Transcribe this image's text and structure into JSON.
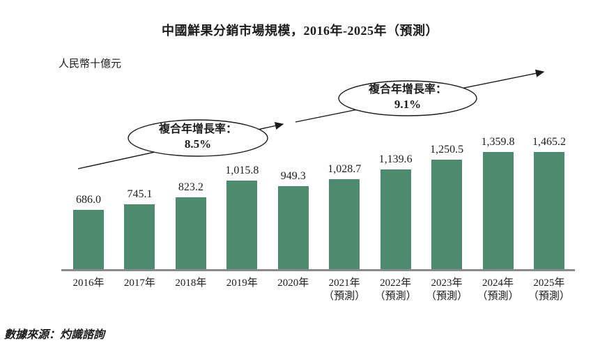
{
  "page": {
    "title": "中國鮮果分銷市場規模，2016年-2025年（預測）",
    "unit_label": "人民幣十億元",
    "source_note": "數據來源：灼識諮詢"
  },
  "annotations": {
    "cagr_1": {
      "label": "複合年增長率：",
      "value": "8.5%"
    },
    "cagr_2": {
      "label": "複合年增長率：",
      "value": "9.1%"
    }
  },
  "colors": {
    "bar": "#4E8A70",
    "axis": "#8A8A8A",
    "text": "#1C1C1C",
    "annotation_stroke": "#1A1A1A"
  },
  "chart_data": {
    "type": "bar",
    "title": "中國鮮果分銷市場規模，2016年-2025年（預測）",
    "ylabel": "人民幣十億元",
    "categories": [
      "2016年",
      "2017年",
      "2018年",
      "2019年",
      "2020年",
      "2021年",
      "2022年",
      "2023年",
      "2024年",
      "2025年"
    ],
    "category_notes": [
      "",
      "",
      "",
      "",
      "",
      "（預測）",
      "（預測）",
      "（預測）",
      "（預測）",
      "（預測）"
    ],
    "values": [
      686.0,
      745.1,
      823.2,
      1015.8,
      949.3,
      1028.7,
      1139.6,
      1250.5,
      1359.8,
      1465.2
    ],
    "value_labels": [
      "686.0",
      "745.1",
      "823.2",
      "1,015.8",
      "949.3",
      "1,028.7",
      "1,139.6",
      "1,250.5",
      "1,359.8",
      "1,465.2"
    ],
    "ylim": [
      0,
      1550
    ],
    "grid": false,
    "legend": null,
    "annotations": [
      "複合年增長率：8.5%",
      "複合年增長率：9.1%"
    ]
  }
}
